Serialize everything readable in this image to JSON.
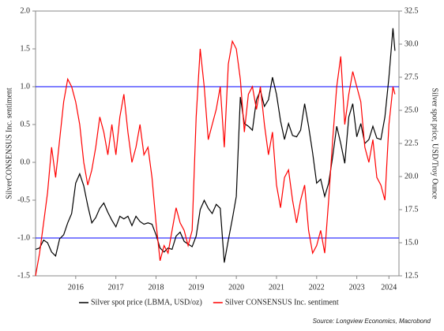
{
  "chart_data": {
    "type": "line",
    "y_label": "SilverCONSENSUS Inc. sentiment",
    "y2_label": "Silver spot price, USD/Troy Ounce",
    "source": "Source: Longview Economics, Macrobond",
    "x": [
      2015.5,
      2015.6,
      2015.7,
      2015.8,
      2015.9,
      2016.0,
      2016.1,
      2016.2,
      2016.3,
      2016.4,
      2016.5,
      2016.6,
      2016.7,
      2016.8,
      2016.9,
      2017.0,
      2017.1,
      2017.2,
      2017.3,
      2017.4,
      2017.5,
      2017.6,
      2017.7,
      2017.8,
      2017.9,
      2018.0,
      2018.1,
      2018.2,
      2018.3,
      2018.4,
      2018.5,
      2018.6,
      2018.7,
      2018.8,
      2018.9,
      2019.0,
      2019.1,
      2019.2,
      2019.3,
      2019.4,
      2019.5,
      2019.6,
      2019.7,
      2019.8,
      2019.9,
      2020.0,
      2020.1,
      2020.2,
      2020.3,
      2020.4,
      2020.5,
      2020.6,
      2020.7,
      2020.8,
      2020.9,
      2021.0,
      2021.1,
      2021.2,
      2021.3,
      2021.4,
      2021.5,
      2021.6,
      2021.7,
      2021.8,
      2021.9,
      2022.0,
      2022.1,
      2022.2,
      2022.3,
      2022.4,
      2022.5,
      2022.6,
      2022.7,
      2022.8,
      2022.9,
      2023.0,
      2023.1,
      2023.2,
      2023.3,
      2023.4,
      2023.5,
      2023.6,
      2023.7,
      2023.8,
      2023.9,
      2024.0,
      2024.1,
      2024.2,
      2024.3,
      2024.4,
      2024.45
    ],
    "series": [
      {
        "name": "Silver spot price (LBMA, USD/oz)",
        "color": "#000000",
        "axis": "y2",
        "values": [
          14.5,
          14.6,
          15.2,
          15.0,
          14.3,
          14.0,
          15.3,
          15.6,
          16.5,
          17.2,
          19.5,
          20.2,
          19.3,
          17.8,
          16.5,
          16.9,
          17.6,
          18.0,
          17.3,
          16.7,
          16.2,
          17.0,
          16.8,
          17.0,
          16.3,
          17.0,
          16.6,
          16.4,
          16.5,
          16.4,
          15.6,
          14.6,
          14.3,
          14.6,
          14.5,
          15.5,
          15.8,
          15.1,
          14.9,
          14.7,
          15.5,
          17.5,
          18.2,
          17.6,
          17.2,
          17.9,
          17.6,
          13.5,
          15.2,
          16.8,
          18.5,
          26.0,
          24.0,
          23.8,
          23.5,
          25.8,
          26.5,
          25.3,
          25.8,
          27.5,
          26.2,
          24.2,
          22.8,
          24.0,
          23.1,
          23.0,
          23.5,
          25.5,
          23.8,
          21.8,
          19.5,
          19.8,
          18.5,
          19.5,
          21.5,
          23.8,
          22.5,
          21.0,
          24.5,
          25.5,
          23.0,
          24.0,
          22.5,
          22.8,
          23.8,
          22.9,
          22.8,
          24.5,
          27.5,
          31.2,
          29.5
        ]
      },
      {
        "name": "Silver CONSENSUS Inc. sentiment",
        "color": "#ff0000",
        "axis": "y",
        "values": [
          -1.5,
          -1.2,
          -0.8,
          -0.4,
          0.2,
          -0.2,
          0.3,
          0.8,
          1.1,
          1.0,
          0.8,
          0.5,
          0.0,
          -0.3,
          -0.1,
          0.2,
          0.6,
          0.4,
          0.1,
          0.5,
          0.1,
          0.6,
          0.9,
          0.4,
          0.0,
          0.2,
          0.5,
          0.1,
          0.2,
          -0.2,
          -0.8,
          -1.3,
          -1.1,
          -1.2,
          -0.9,
          -0.6,
          -0.8,
          -0.9,
          -1.1,
          -0.9,
          0.6,
          1.5,
          1.0,
          0.3,
          0.5,
          0.7,
          1.0,
          0.2,
          1.3,
          1.6,
          1.5,
          1.1,
          0.4,
          0.9,
          1.0,
          0.7,
          1.0,
          0.5,
          0.1,
          0.4,
          -0.3,
          -0.6,
          -0.2,
          -0.1,
          -0.5,
          -0.8,
          -0.5,
          -0.3,
          -0.9,
          -1.2,
          -1.1,
          -0.9,
          -1.2,
          -0.5,
          0.3,
          1.0,
          1.4,
          0.5,
          0.9,
          1.2,
          1.0,
          0.8,
          0.2,
          0.0,
          0.3,
          -0.2,
          -0.3,
          -0.5,
          0.5,
          1.0,
          0.9
        ]
      }
    ],
    "xlim": [
      2015.5,
      2024.55
    ],
    "xticks": [
      {
        "value": 2016.5,
        "label": "2016"
      },
      {
        "value": 2017.5,
        "label": "2017"
      },
      {
        "value": 2018.5,
        "label": "2018"
      },
      {
        "value": 2019.5,
        "label": "2019"
      },
      {
        "value": 2020.5,
        "label": "2020"
      },
      {
        "value": 2021.5,
        "label": "2021"
      },
      {
        "value": 2022.5,
        "label": "2022"
      },
      {
        "value": 2023.5,
        "label": "2023"
      },
      {
        "value": 2024.3,
        "label": "2024"
      }
    ],
    "ylim": [
      -1.5,
      2.0
    ],
    "yticks": [
      {
        "value": 2,
        "label": "2.0"
      },
      1.5,
      {
        "value": 1,
        "label": "1.0"
      },
      0.5,
      {
        "value": 0,
        "label": "0.0"
      },
      -0.5,
      {
        "value": -1,
        "label": "-1.0"
      },
      -1.5
    ],
    "y2lim": [
      12.5,
      32.5
    ],
    "y2ticks": [
      {
        "value": 32.5,
        "label": "32.5"
      },
      {
        "value": 30,
        "label": "30.0"
      },
      {
        "value": 27.5,
        "label": "27.5"
      },
      {
        "value": 25,
        "label": "25.0"
      },
      {
        "value": 22.5,
        "label": "22.5"
      },
      {
        "value": 20,
        "label": "20.0"
      },
      {
        "value": 17.5,
        "label": "17.5"
      },
      {
        "value": 15,
        "label": "15.0"
      },
      {
        "value": 12.5,
        "label": "12.5"
      }
    ],
    "hlines": [
      1,
      -1
    ],
    "hline_color": "#0000ff"
  }
}
